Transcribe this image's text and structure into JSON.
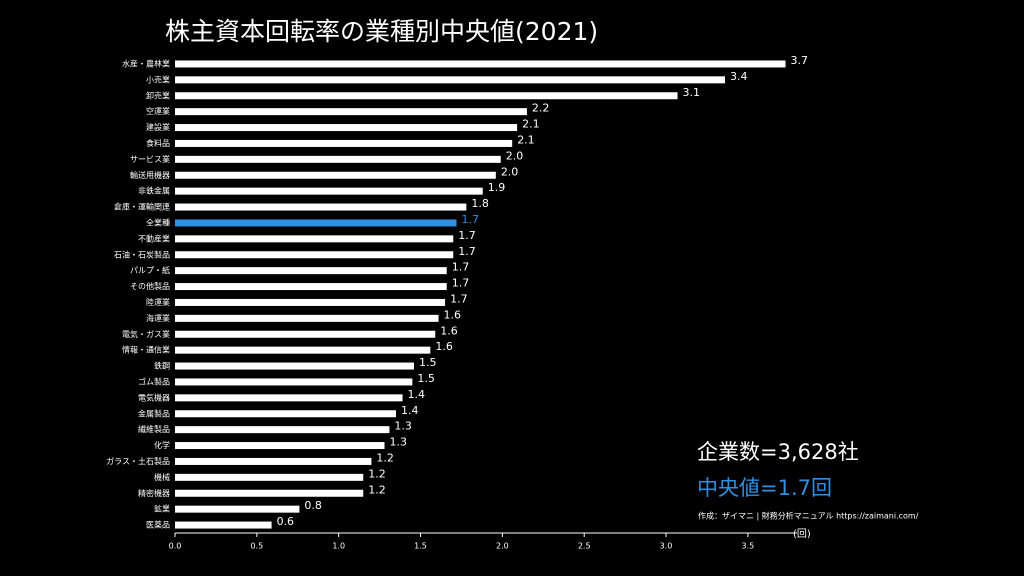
{
  "chart_data": {
    "type": "barh",
    "title": "株主資本回転率の業種別中央値(2021)",
    "categories": [
      "水産・農林業",
      "小売業",
      "卸売業",
      "空運業",
      "建設業",
      "食料品",
      "サービス業",
      "輸送用機器",
      "非鉄金属",
      "倉庫・運輸関連",
      "全業種",
      "不動産業",
      "石油・石炭製品",
      "パルプ・紙",
      "その他製品",
      "陸運業",
      "海運業",
      "電気・ガス業",
      "情報・通信業",
      "鉄鋼",
      "ゴム製品",
      "電気機器",
      "金属製品",
      "繊維製品",
      "化学",
      "ガラス・土石製品",
      "機械",
      "精密機器",
      "鉱業",
      "医薬品"
    ],
    "values": [
      3.73,
      3.36,
      3.07,
      2.15,
      2.09,
      2.06,
      1.99,
      1.96,
      1.88,
      1.78,
      1.72,
      1.7,
      1.7,
      1.66,
      1.66,
      1.65,
      1.61,
      1.59,
      1.56,
      1.46,
      1.45,
      1.39,
      1.35,
      1.31,
      1.28,
      1.2,
      1.15,
      1.15,
      0.76,
      0.59
    ],
    "value_labels": [
      "3.7",
      "3.4",
      "3.1",
      "2.2",
      "2.1",
      "2.1",
      "2.0",
      "2.0",
      "1.9",
      "1.8",
      "1.7",
      "1.7",
      "1.7",
      "1.7",
      "1.7",
      "1.7",
      "1.6",
      "1.6",
      "1.6",
      "1.5",
      "1.5",
      "1.4",
      "1.4",
      "1.3",
      "1.3",
      "1.2",
      "1.2",
      "1.2",
      "0.8",
      "0.6"
    ],
    "colors": [
      "#ffffff",
      "#ffffff",
      "#ffffff",
      "#ffffff",
      "#ffffff",
      "#ffffff",
      "#ffffff",
      "#ffffff",
      "#ffffff",
      "#ffffff",
      "#2f8fe0",
      "#ffffff",
      "#ffffff",
      "#ffffff",
      "#ffffff",
      "#ffffff",
      "#ffffff",
      "#ffffff",
      "#ffffff",
      "#ffffff",
      "#ffffff",
      "#ffffff",
      "#ffffff",
      "#ffffff",
      "#ffffff",
      "#ffffff",
      "#ffffff",
      "#ffffff",
      "#ffffff",
      "#ffffff"
    ],
    "xlim": [
      0,
      3.8
    ],
    "xticks": [
      {
        "value": 0,
        "label": "0.0"
      },
      0.5,
      {
        "value": 1,
        "label": "1.0"
      },
      1.5,
      {
        "value": 2,
        "label": "2.0"
      },
      2.5,
      {
        "value": 3,
        "label": "3.0"
      },
      3.5
    ],
    "x_label": "(回)",
    "annotations": [
      {
        "text": "企業数=3,628社",
        "color": "#ffffff"
      },
      {
        "text": "中央値=1.7回",
        "color": "#2f8fe0"
      }
    ],
    "source": "作成：ザイマニ | 財務分析マニュアル https://zaimani.com/"
  }
}
